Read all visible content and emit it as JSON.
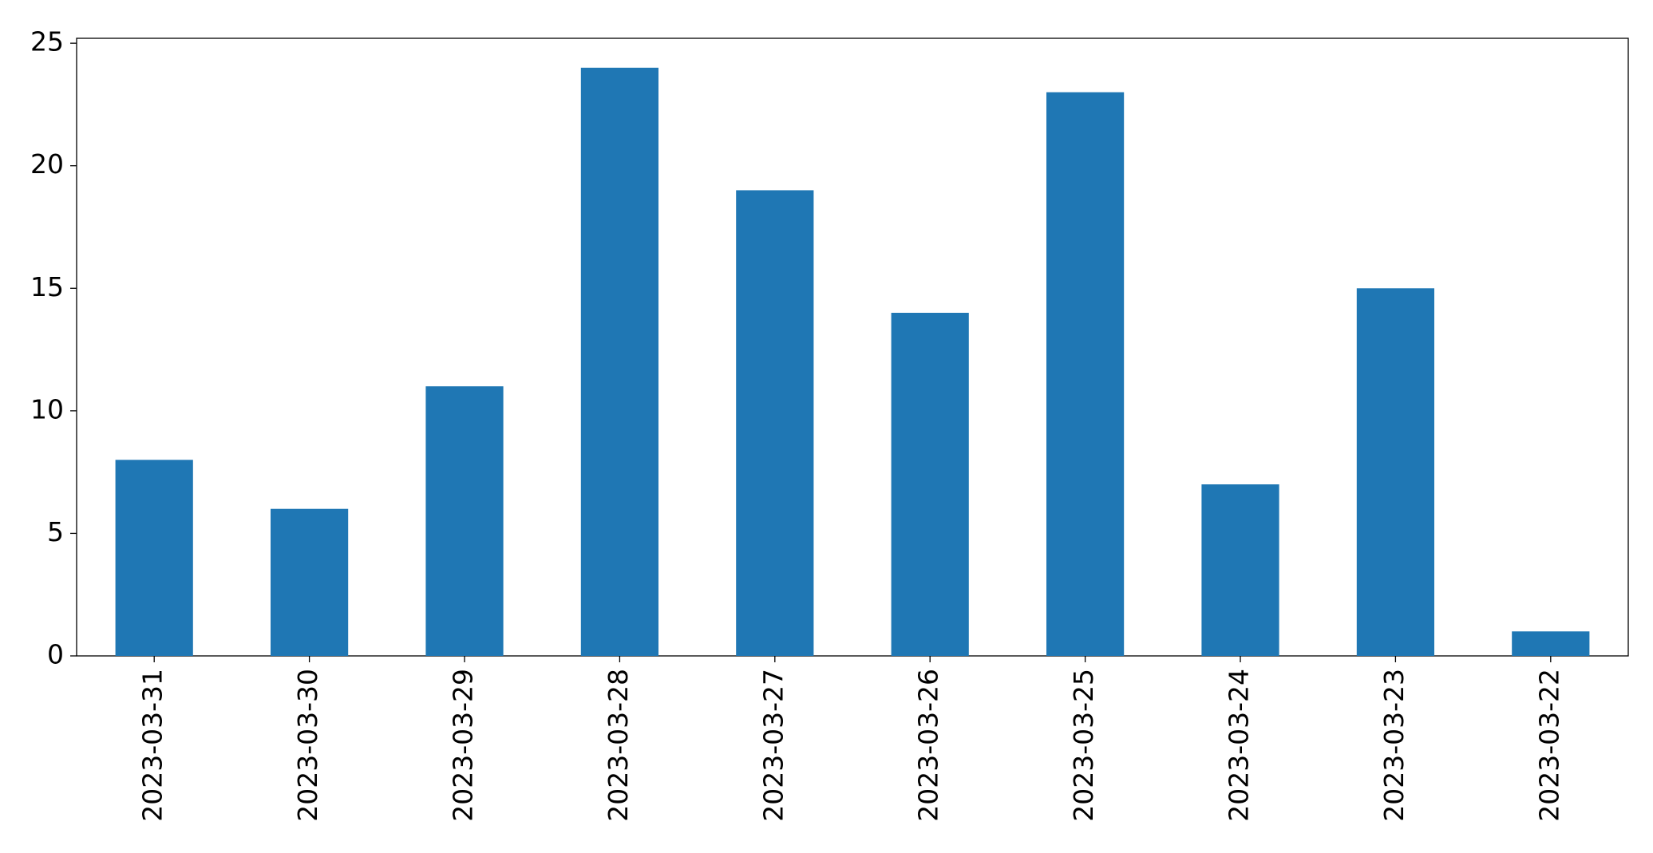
{
  "chart_data": {
    "type": "bar",
    "categories": [
      "2023-03-31",
      "2023-03-30",
      "2023-03-29",
      "2023-03-28",
      "2023-03-27",
      "2023-03-26",
      "2023-03-25",
      "2023-03-24",
      "2023-03-23",
      "2023-03-22"
    ],
    "values": [
      8,
      6,
      11,
      24,
      19,
      14,
      23,
      7,
      15,
      1
    ],
    "color": "#1f77b4",
    "ylim": [
      0,
      25.2
    ],
    "yticks": [
      0,
      5,
      10,
      15,
      20,
      25
    ],
    "grid": false
  }
}
